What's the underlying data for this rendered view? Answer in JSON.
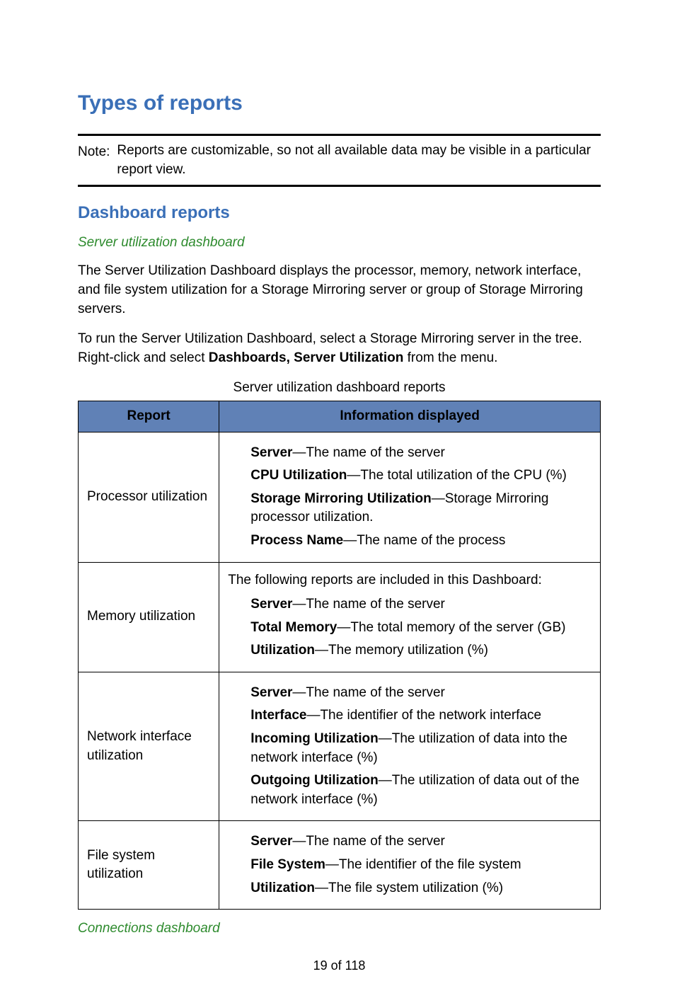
{
  "colors": {
    "heading_blue": "#3a6fb7",
    "sub_green": "#2e8b2e",
    "table_header_bg": "#6081b6",
    "text": "#000000",
    "background": "#ffffff",
    "rule": "#000000"
  },
  "typography": {
    "body_fontsize_pt": 14,
    "h1_fontsize_pt": 22,
    "h2_fontsize_pt": 18,
    "sub_fontsize_pt": 14,
    "font_family": "Arial, Helvetica, sans-serif"
  },
  "page": {
    "title": "Types of reports",
    "note_label": "Note:",
    "note_text": "Reports are customizable, so not all available data may be visible in a particular report view.",
    "section_title": "Dashboard reports",
    "sub1_title": "Server utilization dashboard",
    "para1": "The Server Utilization Dashboard displays the processor, memory, network interface, and file system utilization for a Storage Mirroring server or group of Storage Mirroring servers.",
    "para2_pre": "To run the Server Utilization Dashboard, select a Storage Mirroring server in the tree. Right-click and select ",
    "para2_bold": "Dashboards, Server Utilization",
    "para2_post": " from the menu.",
    "table_caption": "Server utilization dashboard reports",
    "sub2_title": "Connections dashboard",
    "page_number": "19 of 118"
  },
  "table": {
    "type": "table",
    "columns": [
      "Report",
      "Information displayed"
    ],
    "column_widths_pct": [
      27,
      73
    ],
    "header_bg": "#6081b6",
    "border_color": "#000000",
    "rows": [
      {
        "report": "Processor utilization",
        "intro": "",
        "items": [
          {
            "term": "Server",
            "desc": "—The name of the server"
          },
          {
            "term": "CPU Utilization",
            "desc": "—The total utilization of the CPU (%)"
          },
          {
            "term": "Storage Mirroring Utilization",
            "desc": "—Storage Mirroring processor utilization."
          },
          {
            "term": "Process Name",
            "desc": "—The name of the process"
          }
        ]
      },
      {
        "report": "Memory utilization",
        "intro": "The following reports are included in this Dashboard:",
        "items": [
          {
            "term": "Server",
            "desc": "—The name of the server"
          },
          {
            "term": "Total Memory",
            "desc": "—The total memory of the server (GB)"
          },
          {
            "term": "Utilization",
            "desc": "—The memory utilization (%)"
          }
        ]
      },
      {
        "report": "Network interface utilization",
        "intro": "",
        "items": [
          {
            "term": "Server",
            "desc": "—The name of the server"
          },
          {
            "term": "Interface",
            "desc": "—The identifier of the network interface"
          },
          {
            "term": "Incoming Utilization",
            "desc": "—The utilization of data into the network interface (%)"
          },
          {
            "term": "Outgoing Utilization",
            "desc": "—The utilization of data out of the network interface (%)"
          }
        ]
      },
      {
        "report": "File system utilization",
        "intro": "",
        "items": [
          {
            "term": "Server",
            "desc": "—The name of the server"
          },
          {
            "term": "File System",
            "desc": "—The identifier of the file system"
          },
          {
            "term": "Utilization",
            "desc": "—The file system utilization (%)"
          }
        ]
      }
    ]
  }
}
